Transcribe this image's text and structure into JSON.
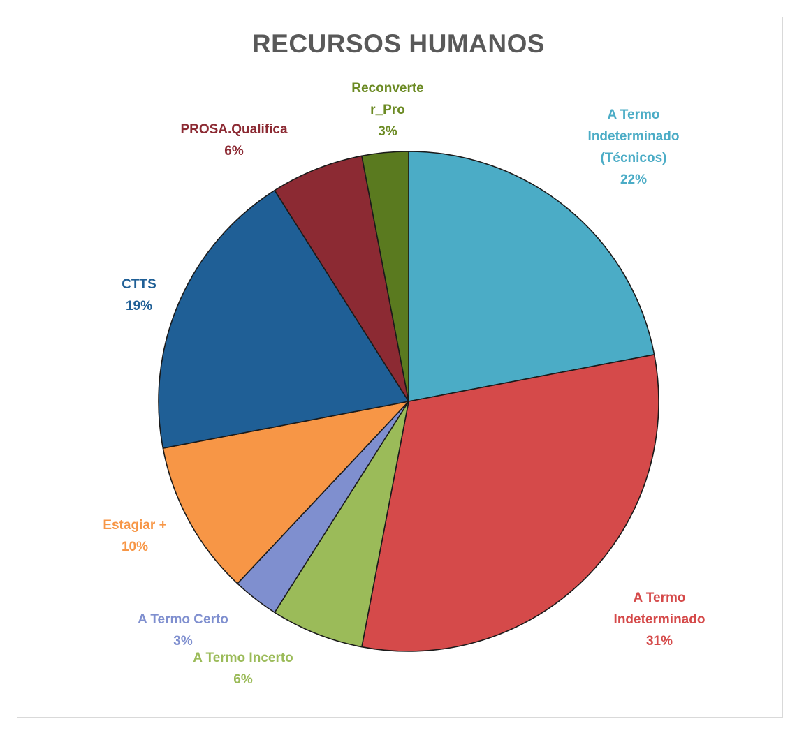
{
  "chart_data": {
    "type": "pie",
    "title": "RECURSOS HUMANOS",
    "slices": [
      {
        "label": [
          "A Termo",
          "Indeterminado",
          "(Técnicos)"
        ],
        "percent_label": "22%",
        "value": 22,
        "color": "#4bacc6"
      },
      {
        "label": [
          "A Termo",
          "Indeterminado"
        ],
        "percent_label": "31%",
        "value": 31,
        "color": "#d54a4a"
      },
      {
        "label": [
          "A Termo Incerto"
        ],
        "percent_label": "6%",
        "value": 6,
        "color": "#9bbb59"
      },
      {
        "label": [
          "A Termo Certo"
        ],
        "percent_label": "3%",
        "value": 3,
        "color": "#7f8fcf"
      },
      {
        "label": [
          "Estagiar +"
        ],
        "percent_label": "10%",
        "value": 10,
        "color": "#f79646"
      },
      {
        "label": [
          "CTTS"
        ],
        "percent_label": "19%",
        "value": 19,
        "color": "#1f5f96"
      },
      {
        "label": [
          "PROSA.Qualifica"
        ],
        "percent_label": "6%",
        "value": 6,
        "color": "#8c2a33"
      },
      {
        "label": [
          "Reconverte",
          "r_Pro"
        ],
        "percent_label": "3%",
        "value": 3,
        "color": "#5a7a1f"
      }
    ],
    "label_colors": [
      "#4bacc6",
      "#d54a4a",
      "#9bbb59",
      "#7f8fcf",
      "#f79646",
      "#1f5f96",
      "#8c2a33",
      "#6b8a23"
    ]
  }
}
